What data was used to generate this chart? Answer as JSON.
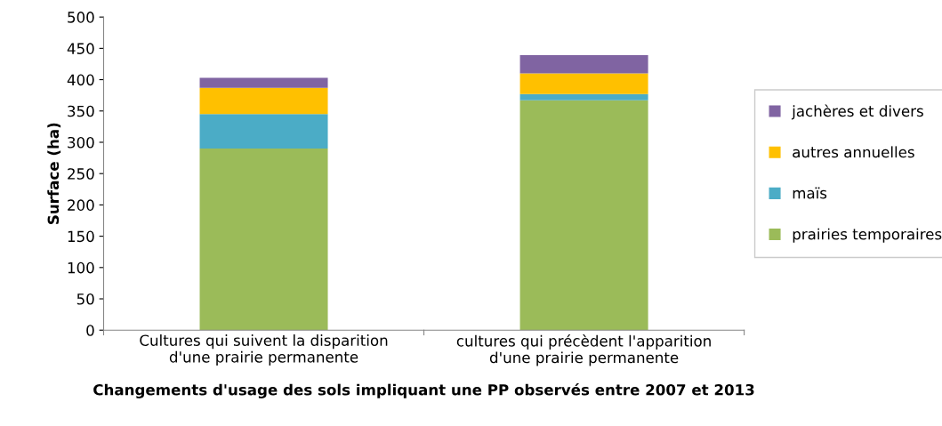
{
  "chart_data": {
    "type": "bar",
    "stacked": true,
    "xlabel": "Changements d'usage des sols impliquant une PP observés entre 2007 et 2013",
    "ylabel": "Surface (ha)",
    "categories": [
      "Cultures qui suivent la disparition\nd'une prairie permanente",
      "cultures qui précèdent l'apparition\nd'une prairie permanente"
    ],
    "series": [
      {
        "name": "prairies temporaires",
        "color": "#9bbb59",
        "values": [
          290,
          367
        ]
      },
      {
        "name": "maïs",
        "color": "#4bacc6",
        "values": [
          55,
          10
        ]
      },
      {
        "name": "autres annuelles",
        "color": "#ffc000",
        "values": [
          42,
          33
        ]
      },
      {
        "name": "jachères et divers",
        "color": "#8064a2",
        "values": [
          16,
          29
        ]
      }
    ],
    "ylim": [
      0,
      500
    ],
    "yticks": [
      0,
      50,
      100,
      150,
      200,
      250,
      300,
      350,
      400,
      450,
      500
    ],
    "grid": false,
    "legend": "right"
  }
}
